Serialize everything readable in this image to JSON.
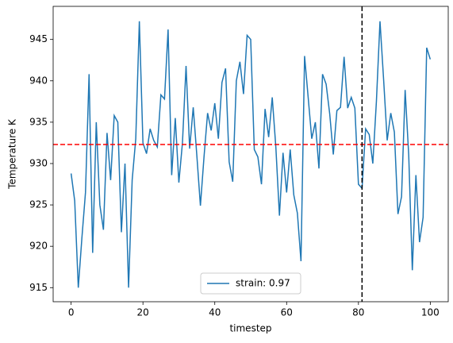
{
  "chart_data": {
    "type": "line",
    "xlabel": "timestep",
    "ylabel": "Temperature K",
    "x": [
      0,
      1,
      2,
      3,
      4,
      5,
      6,
      7,
      8,
      9,
      10,
      11,
      12,
      13,
      14,
      15,
      16,
      17,
      18,
      19,
      20,
      21,
      22,
      23,
      24,
      25,
      26,
      27,
      28,
      29,
      30,
      31,
      32,
      33,
      34,
      35,
      36,
      37,
      38,
      39,
      40,
      41,
      42,
      43,
      44,
      45,
      46,
      47,
      48,
      49,
      50,
      51,
      52,
      53,
      54,
      55,
      56,
      57,
      58,
      59,
      60,
      61,
      62,
      63,
      64,
      65,
      66,
      67,
      68,
      69,
      70,
      71,
      72,
      73,
      74,
      75,
      76,
      77,
      78,
      79,
      80,
      81,
      82,
      83,
      84,
      85,
      86,
      87,
      88,
      89,
      90,
      91,
      92,
      93,
      94,
      95,
      96,
      97,
      98,
      99,
      100
    ],
    "series": [
      {
        "name": "strain: 0.97",
        "color": "#1f77b4",
        "values": [
          928.8,
          925.5,
          915,
          921,
          926.5,
          940.8,
          919.2,
          935,
          925,
          922,
          933.7,
          928,
          935.8,
          935,
          921.7,
          930,
          915,
          928,
          933,
          947.2,
          932.5,
          931.2,
          934.2,
          932.8,
          932,
          938.3,
          937.8,
          946.2,
          928.6,
          935.5,
          927.7,
          932.5,
          941.8,
          931.8,
          936.8,
          931,
          924.9,
          930.8,
          936.1,
          934,
          937.3,
          933,
          939.8,
          941.5,
          930.2,
          927.8,
          940,
          942.3,
          938.4,
          945.5,
          945,
          931.7,
          930.8,
          927.5,
          936.6,
          933.2,
          938,
          932,
          923.7,
          931.3,
          926.5,
          931.7,
          926.2,
          924,
          918.2,
          943,
          938,
          933,
          935,
          929.4,
          940.8,
          939.6,
          936,
          931.1,
          936.4,
          936.8,
          942.9,
          936.7,
          938,
          936.7,
          927.5,
          927,
          934.2,
          933.5,
          930,
          937.5,
          947.2,
          940.2,
          932.8,
          936.1,
          933.8,
          923.9,
          926,
          938.9,
          931,
          917.1,
          928.6,
          920.5,
          923.5,
          944,
          942.6
        ]
      }
    ],
    "hline": {
      "value": 932.3,
      "color": "#ff0000"
    },
    "vline": {
      "value": 81,
      "color": "#000000"
    },
    "xlim": [
      -5,
      105
    ],
    "ylim": [
      913.3,
      949
    ],
    "xticks": [
      0,
      20,
      40,
      60,
      80,
      100
    ],
    "yticks": [
      915,
      920,
      925,
      930,
      935,
      940,
      945
    ],
    "legend": "lower center"
  }
}
